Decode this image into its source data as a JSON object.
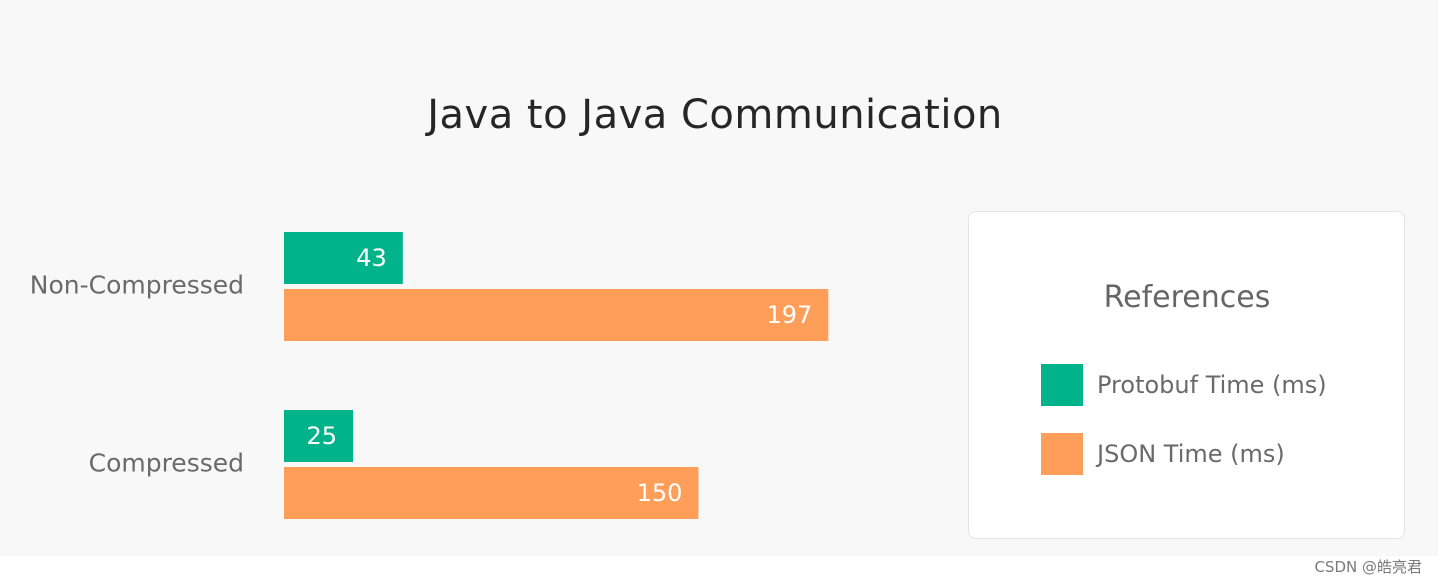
{
  "title": "Java to Java Communication",
  "legend": {
    "title": "References",
    "items": [
      {
        "label": "Protobuf Time (ms)",
        "color": "#00b38a"
      },
      {
        "label": "JSON Time (ms)",
        "color": "#ff9e59"
      }
    ]
  },
  "chart_data": {
    "type": "bar",
    "orientation": "horizontal",
    "title": "Java to Java Communication",
    "categories": [
      "Non-Compressed",
      "Compressed"
    ],
    "series": [
      {
        "name": "Protobuf Time (ms)",
        "values": [
          43,
          25
        ],
        "color": "#00b38a"
      },
      {
        "name": "JSON Time (ms)",
        "values": [
          197,
          150
        ],
        "color": "#ff9e59"
      }
    ],
    "xlim": [
      0,
      200
    ],
    "xlabel": "",
    "ylabel": "",
    "grid": false,
    "axes_visible": false,
    "data_labels": true,
    "legend_position": "right"
  },
  "watermark": "CSDN @皓亮君"
}
